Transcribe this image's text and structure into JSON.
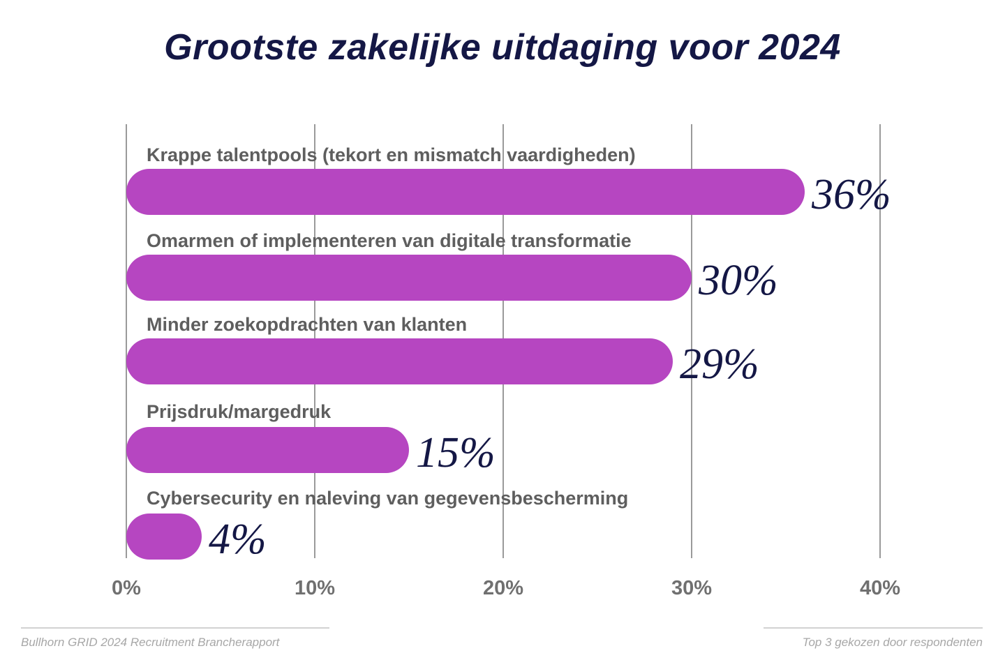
{
  "chart_data": {
    "type": "bar",
    "orientation": "horizontal",
    "title": "Grootste zakelijke uitdaging voor 2024",
    "categories": [
      "Krappe talentpools (tekort en mismatch vaardigheden)",
      "Omarmen of implementeren van digitale transformatie",
      "Minder zoekopdrachten van klanten",
      "Prijsdruk/margedruk",
      "Cybersecurity en naleving van gegevensbescherming"
    ],
    "values": [
      36,
      30,
      29,
      15,
      4
    ],
    "value_labels": [
      "36%",
      "30%",
      "29%",
      "15%",
      "4%"
    ],
    "xlim": [
      0,
      40
    ],
    "xticks": [
      0,
      10,
      20,
      30,
      40
    ],
    "xtick_labels": [
      "0%",
      "10%",
      "20%",
      "30%",
      "40%"
    ],
    "grid": "vertical",
    "colors": {
      "bar": "#b646c1",
      "value_text": "#141745",
      "label_text": "#5e5e5e",
      "grid": "#9a9a9a"
    }
  },
  "footer": {
    "source": "Bullhorn GRID 2024 Recruitment Brancherapport",
    "note": "Top 3 gekozen door respondenten"
  }
}
